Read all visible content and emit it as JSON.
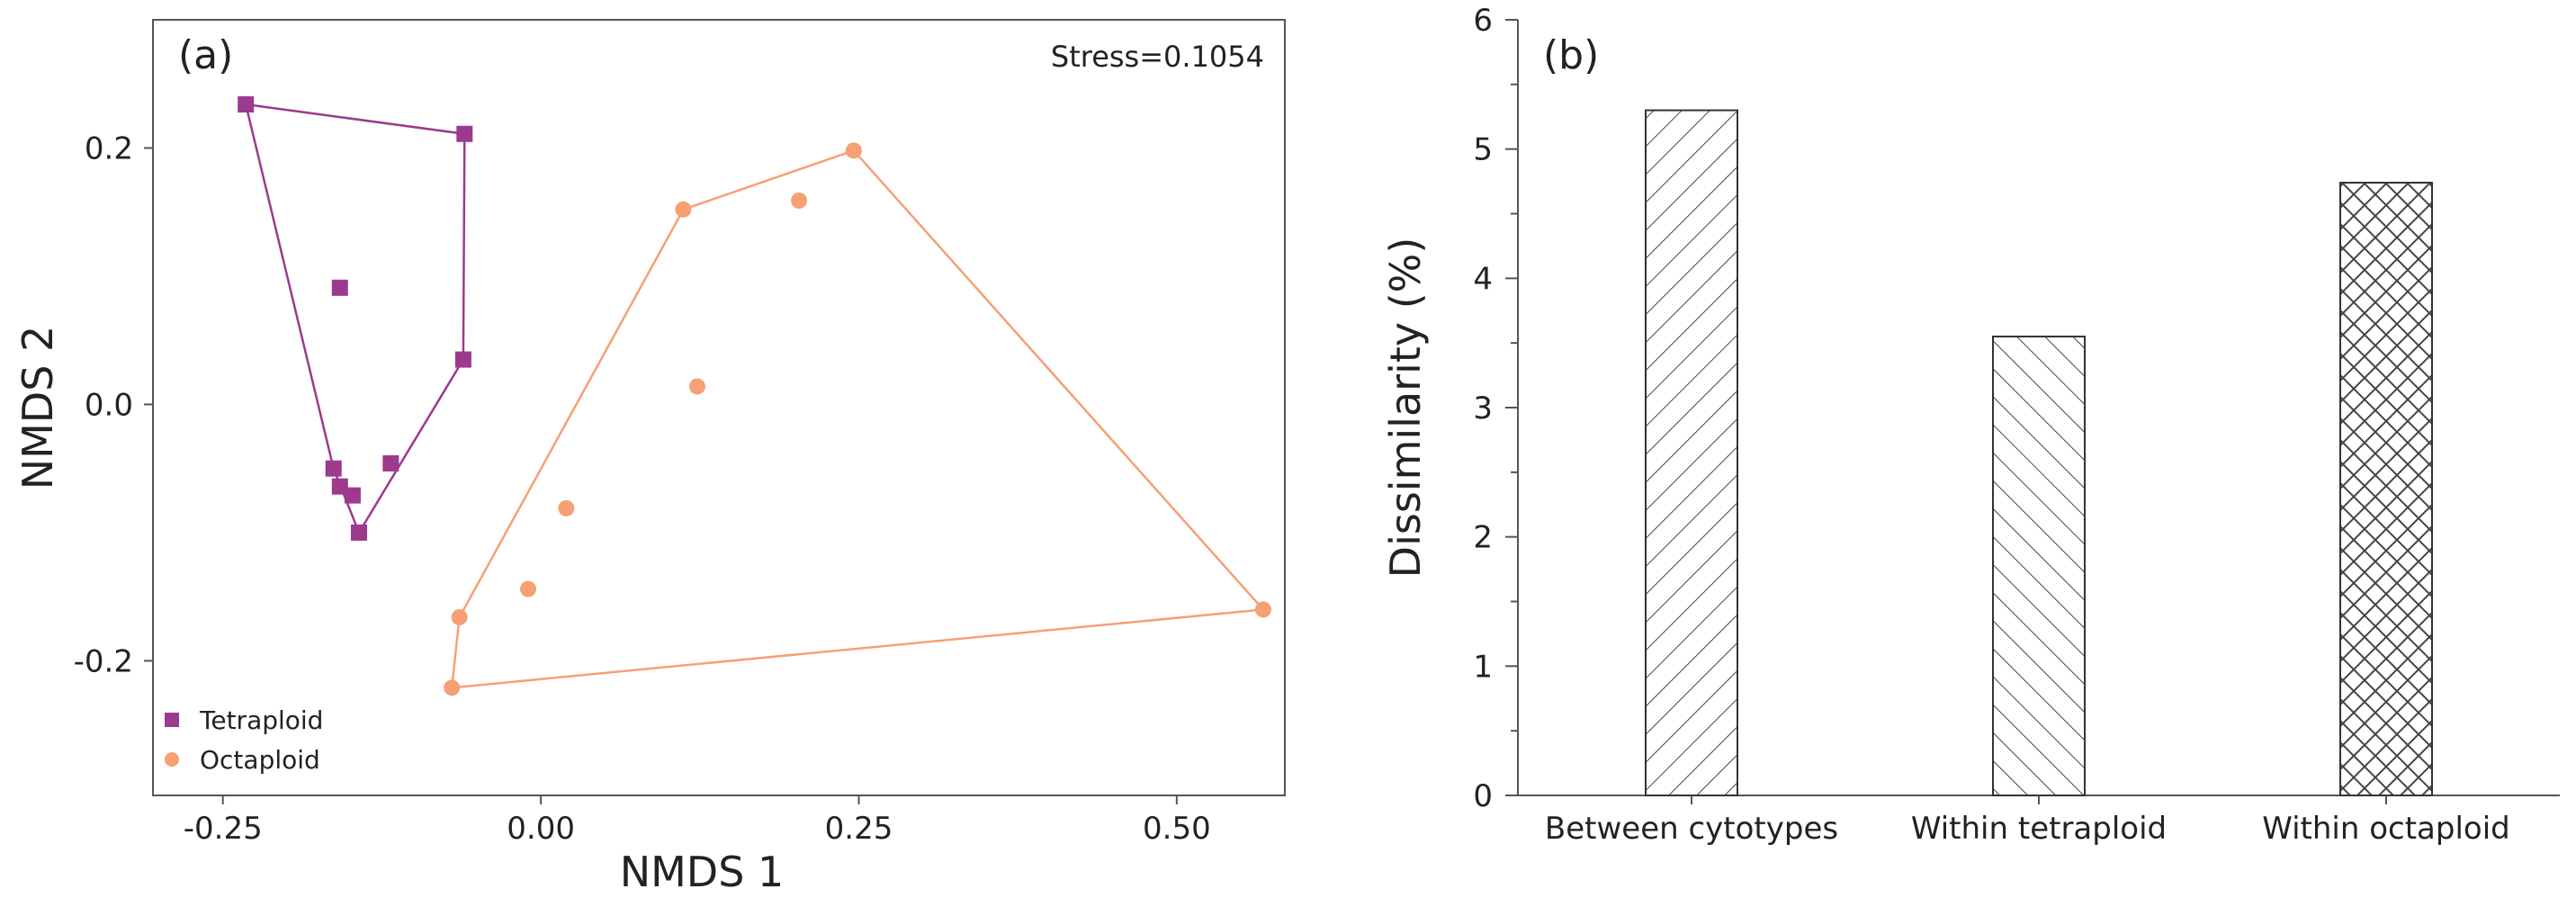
{
  "colors": {
    "tetraploid": "#9B3A8E",
    "octaploid": "#F6A074",
    "axis": "#555555",
    "bar_fill": "#ffffff",
    "hatch": "#444444"
  },
  "chart_data": [
    {
      "type": "scatter",
      "panel_label": "(a)",
      "annotation": "Stress=0.1054",
      "xlabel": "NMDS 1",
      "ylabel": "NMDS 2",
      "xlim": [
        -0.305,
        0.585
      ],
      "ylim": [
        -0.305,
        0.3
      ],
      "xticks": [
        -0.25,
        0.0,
        0.25,
        0.5
      ],
      "xtick_labels": [
        "-0.25",
        "0.00",
        "0.25",
        "0.50"
      ],
      "yticks": [
        -0.2,
        0.0,
        0.2
      ],
      "ytick_labels": [
        "-0.2",
        "0.0",
        "0.2"
      ],
      "legend_position": "bottom-left",
      "series": [
        {
          "name": "Tetraploid",
          "marker": "square",
          "points": [
            {
              "x": -0.232,
              "y": 0.234
            },
            {
              "x": -0.06,
              "y": 0.211
            },
            {
              "x": -0.158,
              "y": 0.091
            },
            {
              "x": -0.061,
              "y": 0.035
            },
            {
              "x": -0.118,
              "y": -0.046
            },
            {
              "x": -0.163,
              "y": -0.05
            },
            {
              "x": -0.158,
              "y": -0.064
            },
            {
              "x": -0.148,
              "y": -0.071
            },
            {
              "x": -0.143,
              "y": -0.1
            }
          ],
          "hull": [
            0,
            1,
            3,
            8,
            5
          ]
        },
        {
          "name": "Octaploid",
          "marker": "circle",
          "points": [
            {
              "x": 0.246,
              "y": 0.198
            },
            {
              "x": 0.203,
              "y": 0.159
            },
            {
              "x": 0.112,
              "y": 0.152
            },
            {
              "x": 0.123,
              "y": 0.014
            },
            {
              "x": 0.02,
              "y": -0.081
            },
            {
              "x": -0.01,
              "y": -0.144
            },
            {
              "x": -0.064,
              "y": -0.166
            },
            {
              "x": -0.07,
              "y": -0.221
            },
            {
              "x": 0.568,
              "y": -0.16
            }
          ],
          "hull": [
            0,
            8,
            7,
            6,
            2
          ]
        }
      ]
    },
    {
      "type": "bar",
      "panel_label": "(b)",
      "xlabel": "",
      "ylabel": "Dissimilarity (%)",
      "ylim": [
        0,
        6
      ],
      "yticks": [
        0,
        1,
        2,
        3,
        4,
        5,
        6
      ],
      "ytick_labels": [
        "0",
        "1",
        "2",
        "3",
        "4",
        "5",
        "6"
      ],
      "categories": [
        "Between cytotypes",
        "Within tetraploid",
        "Within octaploid"
      ],
      "values": [
        5.3,
        3.55,
        4.74
      ],
      "patterns": [
        "diagonal-right",
        "diagonal-left",
        "crosshatch"
      ]
    }
  ]
}
